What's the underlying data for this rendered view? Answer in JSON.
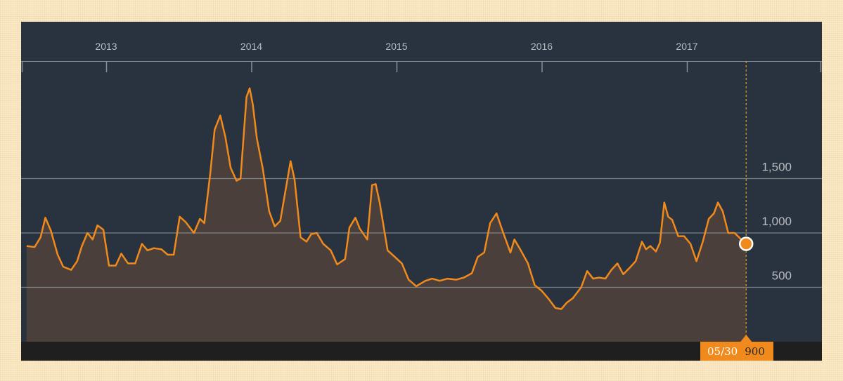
{
  "chart_data": {
    "type": "area",
    "title": "",
    "xlabel": "",
    "ylabel": "",
    "x_ticks": [
      "2013",
      "2014",
      "2015",
      "2016",
      "2017"
    ],
    "y_ticks": [
      500,
      1000,
      1500
    ],
    "y_tick_labels": [
      "500",
      "1,000",
      "1,500"
    ],
    "ylim": [
      0,
      2400
    ],
    "xlim": [
      "2012-06-15",
      "2017-12-31"
    ],
    "grid": "horizontal",
    "legend": "none",
    "series": [
      {
        "points": [
          [
            "2012-06-15",
            880
          ],
          [
            "2012-07-05",
            870
          ],
          [
            "2012-07-20",
            960
          ],
          [
            "2012-08-01",
            1140
          ],
          [
            "2012-08-15",
            1020
          ],
          [
            "2012-09-01",
            800
          ],
          [
            "2012-09-15",
            690
          ],
          [
            "2012-10-05",
            660
          ],
          [
            "2012-10-20",
            740
          ],
          [
            "2012-11-01",
            880
          ],
          [
            "2012-11-15",
            1000
          ],
          [
            "2012-11-28",
            940
          ],
          [
            "2012-12-10",
            1070
          ],
          [
            "2012-12-25",
            1030
          ],
          [
            "2013-01-08",
            700
          ],
          [
            "2013-01-25",
            700
          ],
          [
            "2013-02-08",
            810
          ],
          [
            "2013-02-25",
            720
          ],
          [
            "2013-03-15",
            720
          ],
          [
            "2013-04-01",
            900
          ],
          [
            "2013-04-15",
            840
          ],
          [
            "2013-05-01",
            860
          ],
          [
            "2013-05-20",
            850
          ],
          [
            "2013-06-05",
            800
          ],
          [
            "2013-06-20",
            800
          ],
          [
            "2013-07-05",
            1150
          ],
          [
            "2013-07-20",
            1100
          ],
          [
            "2013-08-10",
            1000
          ],
          [
            "2013-08-25",
            1130
          ],
          [
            "2013-09-05",
            1090
          ],
          [
            "2013-09-20",
            1550
          ],
          [
            "2013-10-01",
            1950
          ],
          [
            "2013-10-15",
            2080
          ],
          [
            "2013-10-28",
            1880
          ],
          [
            "2013-11-10",
            1600
          ],
          [
            "2013-11-25",
            1480
          ],
          [
            "2013-12-05",
            1500
          ],
          [
            "2013-12-20",
            2250
          ],
          [
            "2013-12-28",
            2330
          ],
          [
            "2014-01-05",
            2180
          ],
          [
            "2014-01-15",
            1870
          ],
          [
            "2014-01-30",
            1590
          ],
          [
            "2014-02-15",
            1200
          ],
          [
            "2014-03-01",
            1060
          ],
          [
            "2014-03-15",
            1110
          ],
          [
            "2014-04-01",
            1470
          ],
          [
            "2014-04-10",
            1660
          ],
          [
            "2014-04-20",
            1490
          ],
          [
            "2014-05-05",
            960
          ],
          [
            "2014-05-20",
            920
          ],
          [
            "2014-06-01",
            990
          ],
          [
            "2014-06-15",
            1000
          ],
          [
            "2014-07-01",
            900
          ],
          [
            "2014-07-20",
            840
          ],
          [
            "2014-08-05",
            710
          ],
          [
            "2014-08-25",
            760
          ],
          [
            "2014-09-05",
            1050
          ],
          [
            "2014-09-20",
            1140
          ],
          [
            "2014-10-01",
            1040
          ],
          [
            "2014-10-20",
            940
          ],
          [
            "2014-11-01",
            1440
          ],
          [
            "2014-11-10",
            1450
          ],
          [
            "2014-11-20",
            1280
          ],
          [
            "2014-12-10",
            840
          ],
          [
            "2014-12-25",
            790
          ],
          [
            "2015-01-15",
            720
          ],
          [
            "2015-02-01",
            570
          ],
          [
            "2015-02-20",
            510
          ],
          [
            "2015-03-15",
            560
          ],
          [
            "2015-04-01",
            580
          ],
          [
            "2015-04-20",
            560
          ],
          [
            "2015-05-10",
            580
          ],
          [
            "2015-06-01",
            570
          ],
          [
            "2015-06-20",
            590
          ],
          [
            "2015-07-10",
            630
          ],
          [
            "2015-07-25",
            780
          ],
          [
            "2015-08-10",
            820
          ],
          [
            "2015-08-25",
            1090
          ],
          [
            "2015-09-10",
            1180
          ],
          [
            "2015-09-25",
            1020
          ],
          [
            "2015-10-15",
            820
          ],
          [
            "2015-10-25",
            940
          ],
          [
            "2015-11-10",
            840
          ],
          [
            "2015-11-28",
            720
          ],
          [
            "2015-12-15",
            520
          ],
          [
            "2016-01-01",
            470
          ],
          [
            "2016-01-20",
            390
          ],
          [
            "2016-02-05",
            310
          ],
          [
            "2016-02-20",
            300
          ],
          [
            "2016-03-05",
            360
          ],
          [
            "2016-03-20",
            400
          ],
          [
            "2016-04-10",
            500
          ],
          [
            "2016-04-25",
            650
          ],
          [
            "2016-05-10",
            580
          ],
          [
            "2016-05-25",
            590
          ],
          [
            "2016-06-10",
            580
          ],
          [
            "2016-06-25",
            660
          ],
          [
            "2016-07-10",
            720
          ],
          [
            "2016-07-25",
            620
          ],
          [
            "2016-08-10",
            680
          ],
          [
            "2016-08-25",
            740
          ],
          [
            "2016-09-10",
            920
          ],
          [
            "2016-09-20",
            850
          ],
          [
            "2016-10-01",
            880
          ],
          [
            "2016-10-15",
            830
          ],
          [
            "2016-10-25",
            910
          ],
          [
            "2016-11-05",
            1280
          ],
          [
            "2016-11-15",
            1150
          ],
          [
            "2016-11-25",
            1120
          ],
          [
            "2016-12-10",
            970
          ],
          [
            "2016-12-25",
            970
          ],
          [
            "2017-01-10",
            900
          ],
          [
            "2017-01-25",
            740
          ],
          [
            "2017-02-10",
            920
          ],
          [
            "2017-02-25",
            1130
          ],
          [
            "2017-03-10",
            1180
          ],
          [
            "2017-03-20",
            1280
          ],
          [
            "2017-04-01",
            1200
          ],
          [
            "2017-04-15",
            1000
          ],
          [
            "2017-05-01",
            1000
          ],
          [
            "2017-05-15",
            950
          ],
          [
            "2017-05-30",
            900
          ]
        ]
      }
    ],
    "crosshair": {
      "date": "2017-05-30",
      "label": "05/30",
      "value": "900"
    },
    "colors": {
      "line": "#f08a1c",
      "area_fill": "#4a3f3b",
      "background": "#29333f",
      "grid": "#8a8f96",
      "tick_text": "#b8bcc2",
      "crosshair": "#e0a020",
      "tooltip_bg": "#f08a1c"
    }
  }
}
